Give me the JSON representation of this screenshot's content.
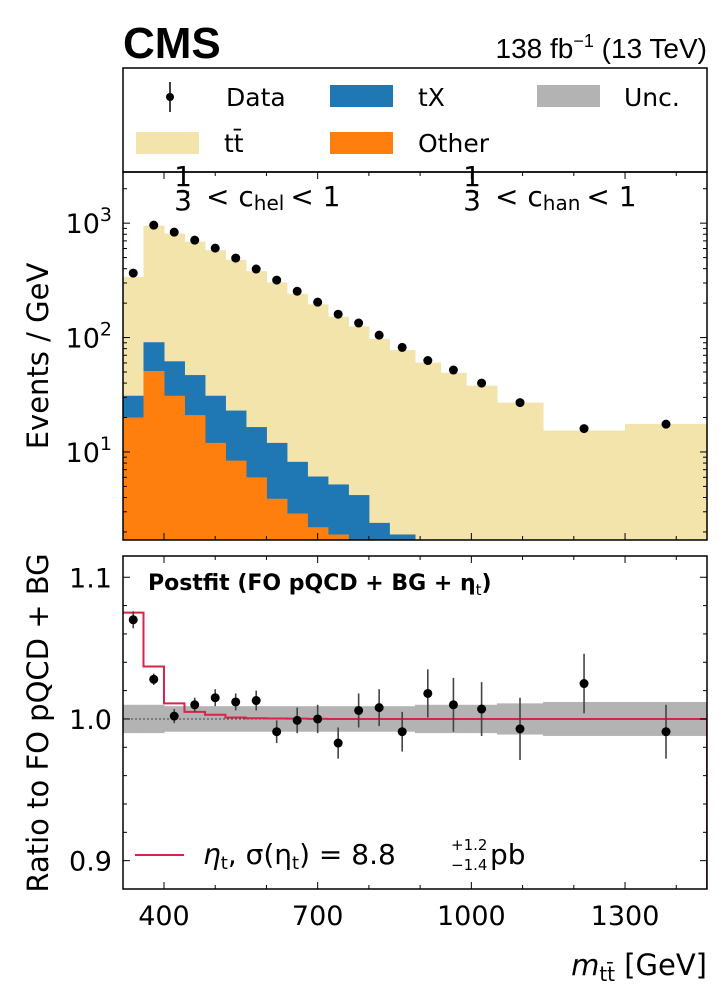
{
  "header": {
    "experiment": "CMS",
    "lumi_value": "138 fb",
    "lumi_exp": "−1",
    "energy": "(13 TeV)"
  },
  "legend": {
    "data": "Data",
    "tX": "tX",
    "unc": "Unc.",
    "ttbar": "tt̄",
    "other": "Other",
    "eta_label": "η",
    "eta_sub": "t",
    "eta_sigma": ", σ(η",
    "eta_sigma_close": ") = 8.8",
    "eta_up": "+1.2",
    "eta_down": "−1.4",
    "eta_unit": "pb"
  },
  "annotations": {
    "hel_frac_num": "1",
    "hel_frac_den": "3",
    "hel_text": "< c",
    "hel_sub": "hel",
    "hel_end": "< 1",
    "han_frac_num": "1",
    "han_frac_den": "3",
    "han_text": "< c",
    "han_sub": "han",
    "han_end": "< 1",
    "postfit": "Postfit (FO pQCD + BG + η",
    "postfit_sub": "t",
    "postfit_end": ")"
  },
  "colors": {
    "ttbar": "#f2e4aa",
    "tX": "#1f77b4",
    "other": "#ff7f0e",
    "unc": "#b3b3b3",
    "eta": "#d6244a",
    "data": "#000000"
  },
  "chart_data": [
    {
      "type": "bar",
      "panel": "upper",
      "title": "",
      "xlabel": "m_tt̄ [GeV]",
      "ylabel": "Events / GeV",
      "yscale": "log",
      "ylim": [
        1.7,
        2800
      ],
      "xlim": [
        320,
        1460
      ],
      "y_ticks": [
        {
          "v": 10,
          "label": "10",
          "exp": "1"
        },
        {
          "v": 100,
          "label": "10",
          "exp": "2"
        },
        {
          "v": 1000,
          "label": "10",
          "exp": "3"
        }
      ],
      "bin_edges": [
        320,
        360,
        400,
        440,
        480,
        520,
        560,
        600,
        640,
        680,
        720,
        760,
        800,
        840,
        890,
        940,
        990,
        1050,
        1140,
        1300,
        1460
      ],
      "series": [
        {
          "name": "Other",
          "color_key": "other",
          "values": [
            20,
            51,
            31,
            21,
            12,
            8.4,
            6.0,
            3.9,
            2.9,
            2.2,
            1.9,
            1.7,
            0,
            0,
            0,
            0,
            0,
            0,
            0,
            0
          ]
        },
        {
          "name": "tX",
          "color_key": "tX",
          "values": [
            11,
            40,
            31,
            26,
            19,
            14.6,
            10.5,
            8.1,
            5.3,
            3.9,
            3.3,
            2.5,
            2.4,
            1.9,
            1.5,
            1.2,
            0,
            0,
            0,
            0
          ]
        },
        {
          "name": "tt̄",
          "color_key": "ttbar",
          "values": [
            307,
            859,
            748,
            643,
            549,
            455,
            364,
            292,
            233,
            189,
            147,
            121,
            95,
            76,
            59,
            48,
            38,
            27,
            15.4,
            17.6
          ]
        }
      ],
      "data": {
        "name": "Data",
        "values": [
          366,
          960,
          834,
          710,
          605,
          495,
          397,
          318,
          254,
          204,
          160,
          134,
          105,
          82,
          63,
          52,
          40,
          27,
          16,
          17.5
        ]
      }
    },
    {
      "type": "line",
      "panel": "lower",
      "xlabel": "m_tt̄ [GeV]",
      "ylabel": "Ratio to FO pQCD + BG",
      "ylim": [
        0.88,
        1.115
      ],
      "xlim": [
        320,
        1460
      ],
      "x_ticks": [
        400,
        700,
        1000,
        1300
      ],
      "y_ticks": [
        {
          "v": 0.9,
          "label": "0.9"
        },
        {
          "v": 1.0,
          "label": "1.0"
        },
        {
          "v": 1.1,
          "label": "1.1"
        }
      ],
      "bin_edges": [
        320,
        360,
        400,
        440,
        480,
        520,
        560,
        600,
        640,
        680,
        720,
        760,
        800,
        840,
        890,
        940,
        990,
        1050,
        1140,
        1300,
        1460
      ],
      "data_ratio": [
        1.07,
        1.028,
        1.002,
        1.01,
        1.015,
        1.012,
        1.013,
        0.991,
        0.999,
        1.0,
        0.983,
        1.006,
        1.008,
        0.991,
        1.018,
        1.01,
        1.007,
        0.993,
        1.025,
        0.991
      ],
      "data_err": [
        0.006,
        0.004,
        0.005,
        0.005,
        0.006,
        0.006,
        0.007,
        0.008,
        0.009,
        0.01,
        0.011,
        0.012,
        0.013,
        0.014,
        0.017,
        0.019,
        0.019,
        0.022,
        0.021,
        0.019
      ],
      "eta_ratio": [
        1.075,
        1.037,
        1.011,
        1.005,
        1.003,
        1.001,
        1.0005,
        1.0003,
        1.0002,
        1.0001,
        1.0,
        1.0,
        1.0,
        1.0,
        1.0,
        1.0,
        1.0,
        1.0,
        1.0,
        1.0
      ],
      "unc_band": [
        0.01,
        0.01,
        0.009,
        0.009,
        0.009,
        0.009,
        0.009,
        0.009,
        0.009,
        0.009,
        0.009,
        0.009,
        0.009,
        0.009,
        0.01,
        0.01,
        0.01,
        0.011,
        0.012,
        0.012
      ]
    }
  ]
}
